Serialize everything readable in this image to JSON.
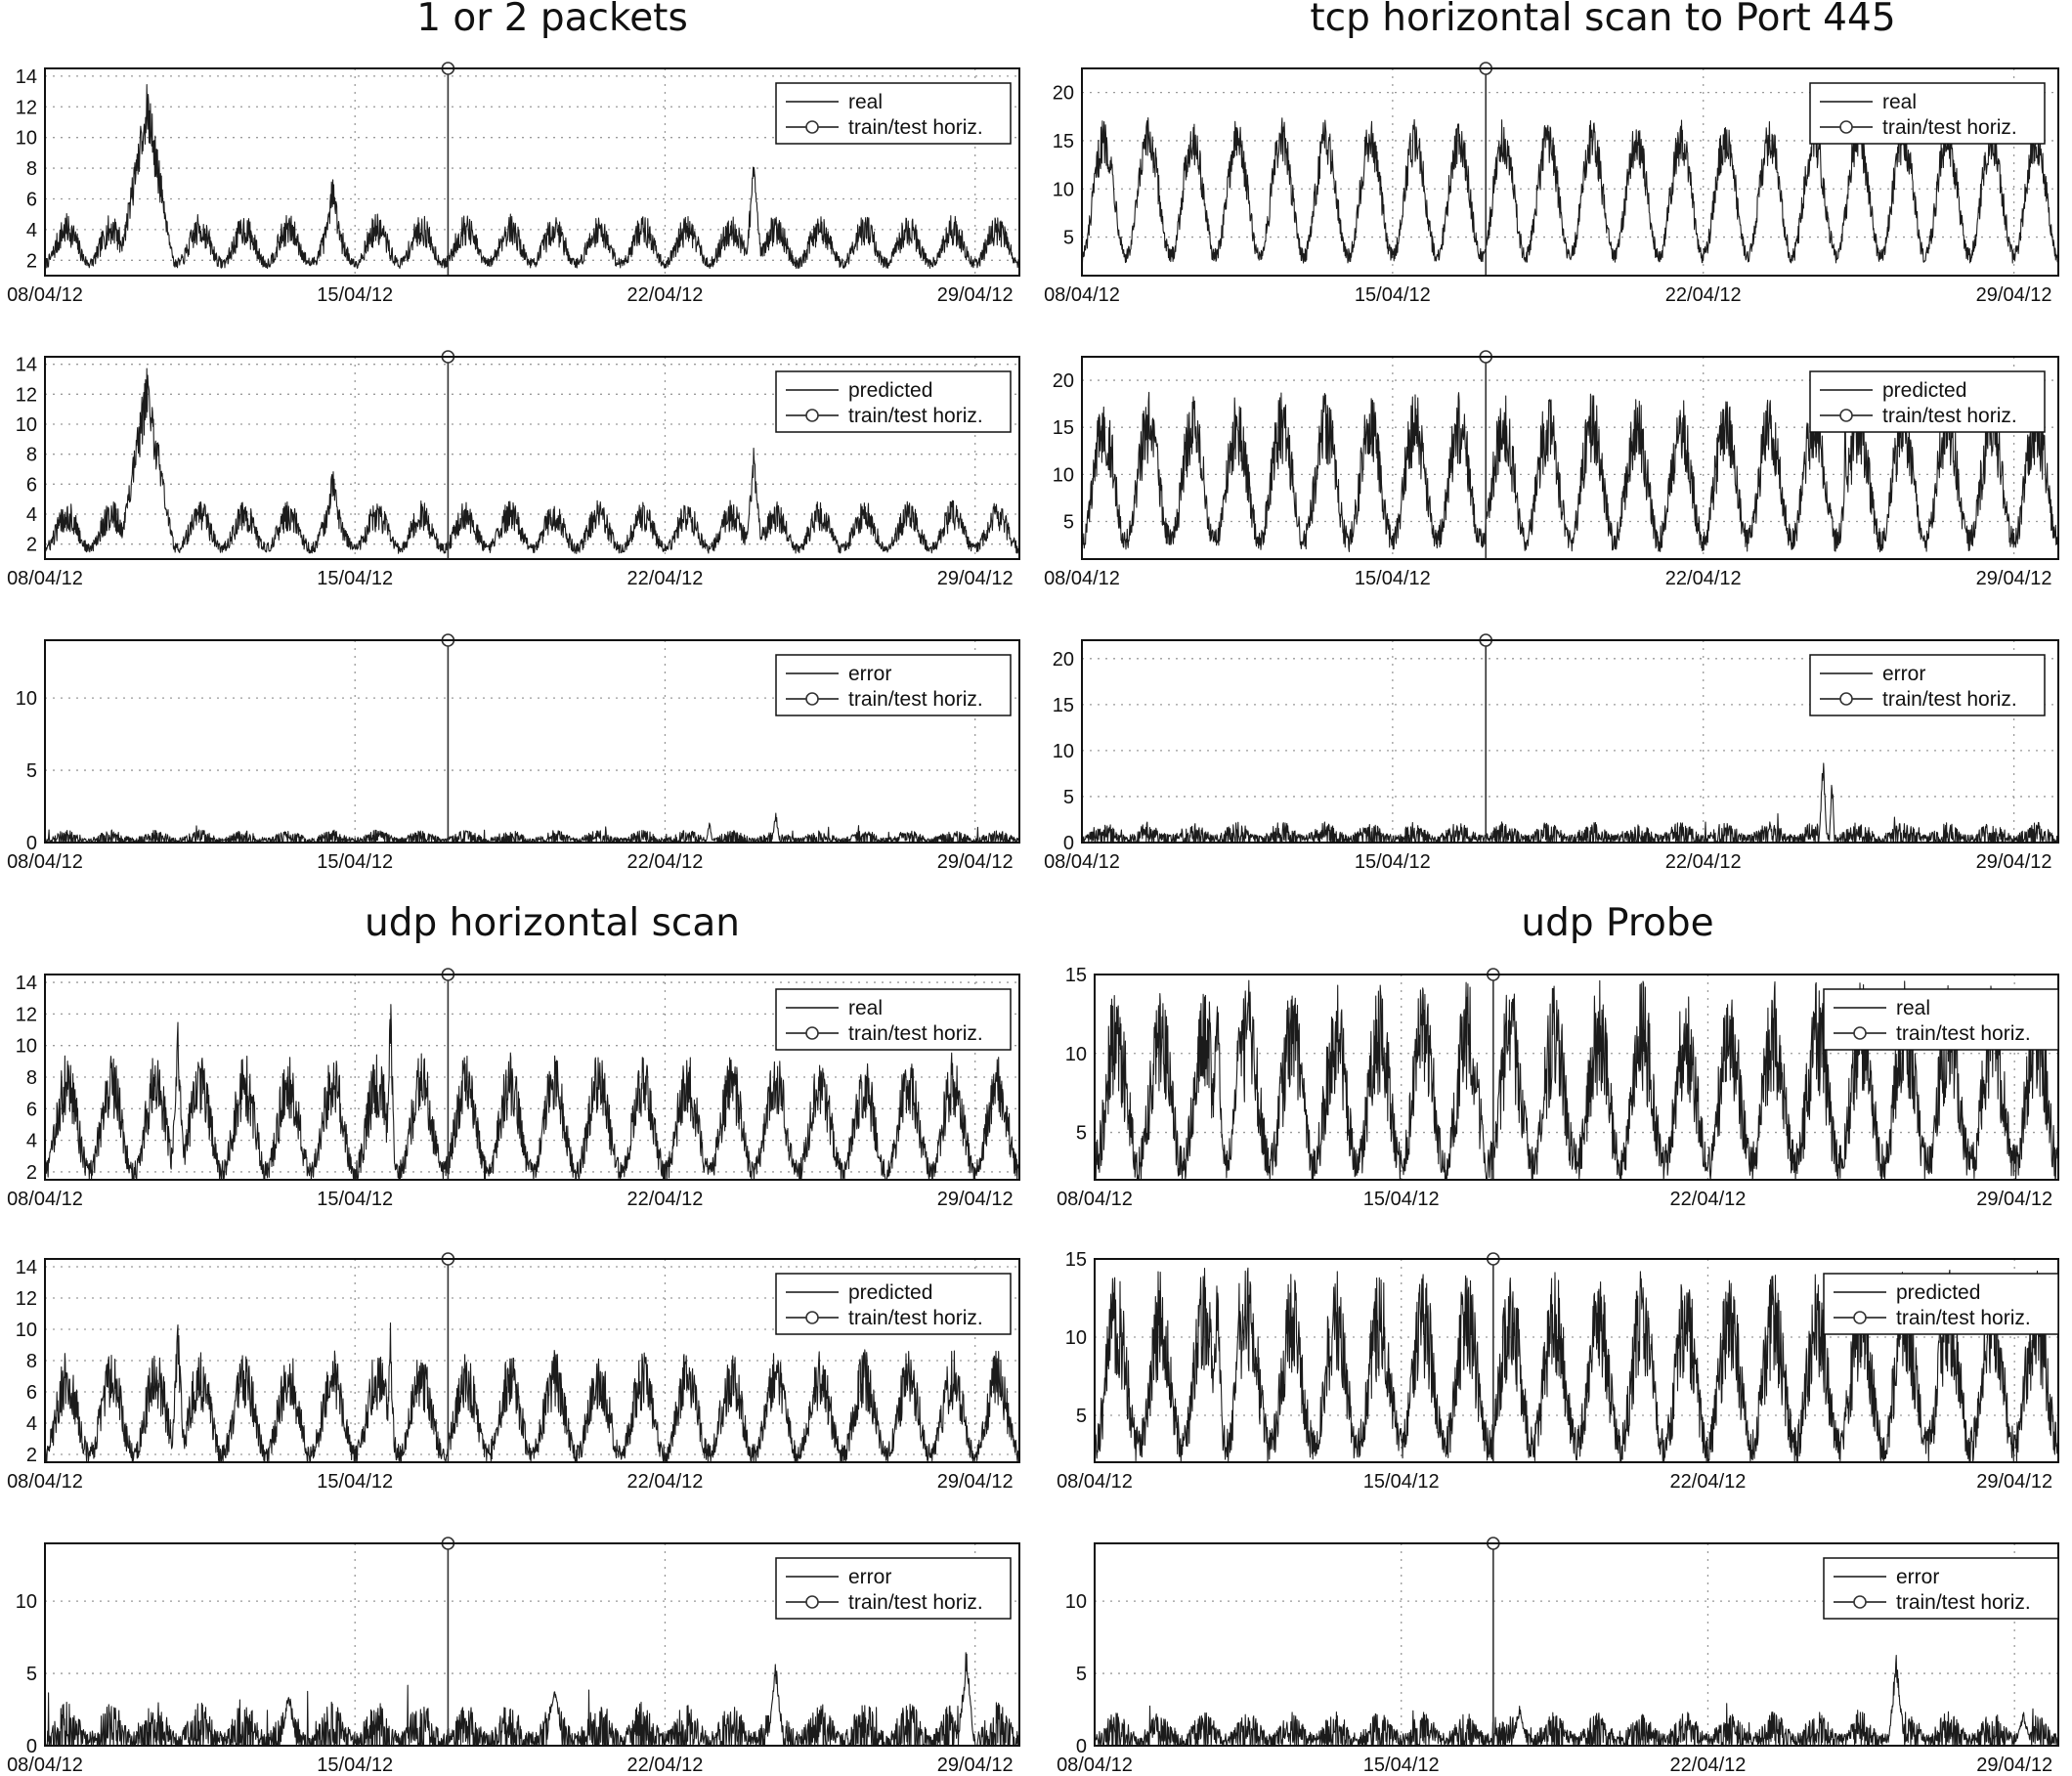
{
  "chart_data": [
    {
      "group": "1 or 2 packets",
      "panels": [
        {
          "type": "line",
          "series": [
            {
              "name": "real",
              "kind": "real"
            },
            {
              "name": "train/test horiz.",
              "kind": "horizon"
            }
          ],
          "x_ticks": [
            "08/04/12",
            "15/04/12",
            "22/04/12",
            "29/04/12"
          ],
          "x_range": [
            "08/04/12",
            "30/04/12"
          ],
          "split_date": "17/04/12",
          "ylim": [
            1,
            14.5
          ],
          "y_ticks": [
            2,
            4,
            6,
            8,
            10,
            12,
            14
          ],
          "grid": true,
          "legend": "top-right",
          "profile": {
            "base": 1.8,
            "amp": 2.2,
            "noise": 0.7,
            "spikes": [
              [
                2.3,
                12,
                14
              ],
              [
                6.5,
                5,
                8
              ],
              [
                16,
                4,
                8.8
              ]
            ]
          }
        },
        {
          "type": "line",
          "series": [
            {
              "name": "predicted",
              "kind": "predicted"
            },
            {
              "name": "train/test horiz.",
              "kind": "horizon"
            }
          ],
          "x_ticks": [
            "08/04/12",
            "15/04/12",
            "22/04/12",
            "29/04/12"
          ],
          "x_range": [
            "08/04/12",
            "30/04/12"
          ],
          "split_date": "17/04/12",
          "ylim": [
            1,
            14.5
          ],
          "y_ticks": [
            2,
            4,
            6,
            8,
            10,
            12,
            14
          ],
          "grid": true,
          "legend": "top-right",
          "profile": {
            "base": 1.7,
            "amp": 2.2,
            "noise": 0.7,
            "spikes": [
              [
                2.3,
                12,
                14
              ],
              [
                6.5,
                5,
                7.5
              ],
              [
                16,
                4,
                8.5
              ]
            ]
          }
        },
        {
          "type": "line",
          "series": [
            {
              "name": "error",
              "kind": "error"
            },
            {
              "name": "train/test horiz.",
              "kind": "horizon"
            }
          ],
          "x_ticks": [
            "08/04/12",
            "15/04/12",
            "22/04/12",
            "29/04/12"
          ],
          "x_range": [
            "08/04/12",
            "30/04/12"
          ],
          "split_date": "17/04/12",
          "ylim": [
            0,
            14
          ],
          "y_ticks": [
            0,
            5,
            10
          ],
          "grid": true,
          "legend": "top-right",
          "profile": {
            "base": 0.15,
            "amp": 0.2,
            "noise": 0.35,
            "spikes": [
              [
                16.5,
                1.5,
                2.3
              ],
              [
                15,
                1.2,
                1.6
              ]
            ]
          }
        }
      ]
    },
    {
      "group": "tcp horizontal scan to Port 445",
      "panels": [
        {
          "type": "line",
          "series": [
            {
              "name": "real",
              "kind": "real"
            },
            {
              "name": "train/test horiz.",
              "kind": "horizon"
            }
          ],
          "x_ticks": [
            "08/04/12",
            "15/04/12",
            "22/04/12",
            "29/04/12"
          ],
          "x_range": [
            "08/04/12",
            "30/04/12"
          ],
          "split_date": "17/04/12",
          "ylim": [
            1,
            22.5
          ],
          "y_ticks": [
            5,
            10,
            15,
            20
          ],
          "grid": true,
          "legend": "top-right",
          "profile": {
            "base": 3,
            "amp": 12,
            "noise": 1.6,
            "spikes": []
          }
        },
        {
          "type": "line",
          "series": [
            {
              "name": "predicted",
              "kind": "predicted"
            },
            {
              "name": "train/test horiz.",
              "kind": "horizon"
            }
          ],
          "x_ticks": [
            "08/04/12",
            "15/04/12",
            "22/04/12",
            "29/04/12"
          ],
          "x_range": [
            "08/04/12",
            "30/04/12"
          ],
          "split_date": "17/04/12",
          "ylim": [
            1,
            22.5
          ],
          "y_ticks": [
            5,
            10,
            15,
            20
          ],
          "grid": true,
          "legend": "top-right",
          "profile": {
            "base": 3,
            "amp": 12,
            "noise": 2.6,
            "spikes": [
              [
                17.2,
                1,
                19
              ]
            ]
          }
        },
        {
          "type": "line",
          "series": [
            {
              "name": "error",
              "kind": "error"
            },
            {
              "name": "train/test horiz.",
              "kind": "horizon"
            }
          ],
          "x_ticks": [
            "08/04/12",
            "15/04/12",
            "22/04/12",
            "29/04/12"
          ],
          "x_range": [
            "08/04/12",
            "30/04/12"
          ],
          "split_date": "17/04/12",
          "ylim": [
            0,
            22
          ],
          "y_ticks": [
            0,
            5,
            10,
            15,
            20
          ],
          "grid": true,
          "legend": "top-right",
          "profile": {
            "base": 0.4,
            "amp": 0.5,
            "noise": 0.9,
            "spikes": [
              [
                16.7,
                1.5,
                10.2
              ],
              [
                16.9,
                1.0,
                8
              ]
            ]
          }
        }
      ]
    },
    {
      "group": "udp horizontal scan",
      "panels": [
        {
          "type": "line",
          "series": [
            {
              "name": "real",
              "kind": "real"
            },
            {
              "name": "train/test horiz.",
              "kind": "horizon"
            }
          ],
          "x_ticks": [
            "08/04/12",
            "15/04/12",
            "22/04/12",
            "29/04/12"
          ],
          "x_range": [
            "08/04/12",
            "30/04/12"
          ],
          "split_date": "17/04/12",
          "ylim": [
            1.5,
            14.5
          ],
          "y_ticks": [
            2,
            4,
            6,
            8,
            10,
            12,
            14
          ],
          "grid": true,
          "legend": "top-right",
          "profile": {
            "base": 2,
            "amp": 5.5,
            "noise": 1.4,
            "spikes": [
              [
                7.8,
                2,
                14.2
              ],
              [
                3,
                3,
                11.6
              ],
              [
                22.5,
                3,
                13
              ]
            ]
          }
        },
        {
          "type": "line",
          "series": [
            {
              "name": "predicted",
              "kind": "predicted"
            },
            {
              "name": "train/test horiz.",
              "kind": "horizon"
            }
          ],
          "x_ticks": [
            "08/04/12",
            "15/04/12",
            "22/04/12",
            "29/04/12"
          ],
          "x_range": [
            "08/04/12",
            "30/04/12"
          ],
          "split_date": "17/04/12",
          "ylim": [
            1.5,
            14.5
          ],
          "y_ticks": [
            2,
            4,
            6,
            8,
            10,
            12,
            14
          ],
          "grid": true,
          "legend": "top-right",
          "profile": {
            "base": 2,
            "amp": 4.8,
            "noise": 1.3,
            "spikes": [
              [
                3,
                3,
                10.8
              ],
              [
                7.8,
                2,
                10.5
              ]
            ]
          }
        },
        {
          "type": "line",
          "series": [
            {
              "name": "error",
              "kind": "error"
            },
            {
              "name": "train/test horiz.",
              "kind": "horizon"
            }
          ],
          "x_ticks": [
            "08/04/12",
            "15/04/12",
            "22/04/12",
            "29/04/12"
          ],
          "x_range": [
            "08/04/12",
            "30/04/12"
          ],
          "split_date": "17/04/12",
          "ylim": [
            0,
            14
          ],
          "y_ticks": [
            0,
            5,
            10
          ],
          "grid": true,
          "legend": "top-right",
          "profile": {
            "base": 0.3,
            "amp": 0.8,
            "noise": 1.3,
            "spikes": [
              [
                20.8,
                3,
                7
              ],
              [
                16.5,
                3,
                6
              ],
              [
                11.5,
                3,
                5.2
              ],
              [
                5.5,
                3,
                4.2
              ]
            ]
          }
        }
      ]
    },
    {
      "group": "udp Probe",
      "panels": [
        {
          "type": "line",
          "series": [
            {
              "name": "real",
              "kind": "real"
            },
            {
              "name": "train/test horiz.",
              "kind": "horizon"
            }
          ],
          "x_ticks": [
            "08/04/12",
            "15/04/12",
            "22/04/12",
            "29/04/12"
          ],
          "x_range": [
            "08/04/12",
            "30/04/12"
          ],
          "split_date": "17/04/12",
          "ylim": [
            2,
            15
          ],
          "y_ticks": [
            5,
            10,
            15
          ],
          "grid": true,
          "legend": "top-right",
          "profile": {
            "base": 3,
            "amp": 8,
            "noise": 2.5,
            "spikes": [
              [
                2.8,
                3,
                14.8
              ],
              [
                3.3,
                3,
                14
              ]
            ]
          }
        },
        {
          "type": "line",
          "series": [
            {
              "name": "predicted",
              "kind": "predicted"
            },
            {
              "name": "train/test horiz.",
              "kind": "horizon"
            }
          ],
          "x_ticks": [
            "08/04/12",
            "15/04/12",
            "22/04/12",
            "29/04/12"
          ],
          "x_range": [
            "08/04/12",
            "30/04/12"
          ],
          "split_date": "17/04/12",
          "ylim": [
            2,
            15
          ],
          "y_ticks": [
            5,
            10,
            15
          ],
          "grid": true,
          "legend": "top-right",
          "profile": {
            "base": 3,
            "amp": 8,
            "noise": 2.4,
            "spikes": [
              [
                2.8,
                3,
                14.2
              ],
              [
                3.3,
                3,
                13.5
              ]
            ]
          }
        },
        {
          "type": "line",
          "series": [
            {
              "name": "error",
              "kind": "error"
            },
            {
              "name": "train/test horiz.",
              "kind": "horizon"
            }
          ],
          "x_ticks": [
            "08/04/12",
            "15/04/12",
            "22/04/12",
            "29/04/12"
          ],
          "x_range": [
            "08/04/12",
            "30/04/12"
          ],
          "split_date": "17/04/12",
          "ylim": [
            0,
            14
          ],
          "y_ticks": [
            0,
            5,
            10
          ],
          "grid": true,
          "legend": "top-right",
          "profile": {
            "base": 0.4,
            "amp": 0.6,
            "noise": 0.9,
            "spikes": [
              [
                18.3,
                3,
                6.6
              ],
              [
                9.7,
                3,
                2.8
              ],
              [
                21.2,
                3,
                2.5
              ]
            ]
          }
        }
      ]
    }
  ]
}
